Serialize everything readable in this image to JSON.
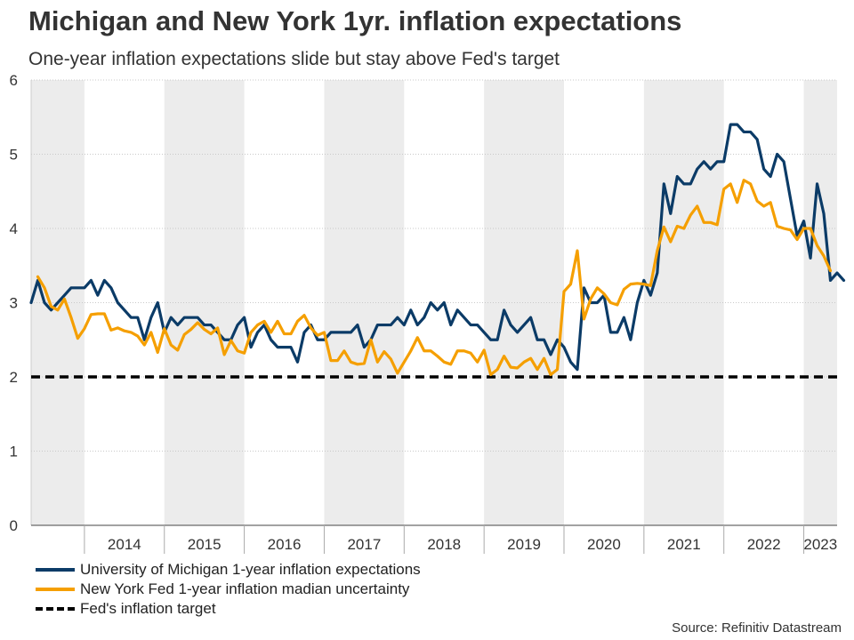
{
  "title": "Michigan and New York 1yr. inflation expectations",
  "subtitle": "One-year inflation expectations slide but stay above Fed's target",
  "source": "Source: Refinitiv Datastream",
  "chart_data": {
    "type": "line",
    "x_axis": {
      "type": "time",
      "range": [
        "2013-05",
        "2023-06"
      ],
      "tick_labels": [
        "2014",
        "2015",
        "2016",
        "2017",
        "2018",
        "2019",
        "2020",
        "2021",
        "2022",
        "2023"
      ]
    },
    "y_axis": {
      "range": [
        0,
        6
      ],
      "ticks": [
        0,
        1,
        2,
        3,
        4,
        5,
        6
      ]
    },
    "grid": "horizontal dotted",
    "background_bands": "alternating shaded years",
    "legend_position": "bottom-left",
    "series": [
      {
        "name": "University of Michigan 1-year inflation expectations",
        "color": "#0b3b67",
        "start": "2013-05",
        "frequency": "monthly",
        "values": [
          3.0,
          3.3,
          3.0,
          2.9,
          3.0,
          3.1,
          3.2,
          3.2,
          3.2,
          3.3,
          3.1,
          3.3,
          3.2,
          3.0,
          2.9,
          2.8,
          2.8,
          2.5,
          2.8,
          3.0,
          2.6,
          2.8,
          2.7,
          2.8,
          2.8,
          2.8,
          2.7,
          2.7,
          2.6,
          2.5,
          2.5,
          2.7,
          2.8,
          2.4,
          2.6,
          2.7,
          2.5,
          2.4,
          2.4,
          2.4,
          2.2,
          2.6,
          2.7,
          2.5,
          2.5,
          2.6,
          2.6,
          2.6,
          2.6,
          2.7,
          2.4,
          2.5,
          2.7,
          2.7,
          2.7,
          2.8,
          2.7,
          2.9,
          2.7,
          2.8,
          3.0,
          2.9,
          3.0,
          2.7,
          2.9,
          2.8,
          2.7,
          2.7,
          2.6,
          2.5,
          2.5,
          2.9,
          2.7,
          2.6,
          2.7,
          2.8,
          2.5,
          2.5,
          2.3,
          2.5,
          2.4,
          2.2,
          2.1,
          3.2,
          3.0,
          3.0,
          3.1,
          2.6,
          2.6,
          2.8,
          2.5,
          3.0,
          3.3,
          3.1,
          3.4,
          4.6,
          4.2,
          4.7,
          4.6,
          4.6,
          4.8,
          4.9,
          4.8,
          4.9,
          4.9,
          5.4,
          5.4,
          5.3,
          5.3,
          5.2,
          4.8,
          4.7,
          5.0,
          4.9,
          4.4,
          3.9,
          4.1,
          3.6,
          4.6,
          4.2,
          3.3,
          3.4,
          3.3
        ]
      },
      {
        "name": "New York Fed 1-year inflation madian uncertainty",
        "color": "#f59f00",
        "start": "2013-06",
        "frequency": "monthly",
        "values": [
          3.35,
          3.2,
          2.95,
          2.9,
          3.05,
          2.8,
          2.52,
          2.65,
          2.84,
          2.85,
          2.85,
          2.63,
          2.66,
          2.62,
          2.6,
          2.55,
          2.43,
          2.6,
          2.33,
          2.65,
          2.43,
          2.36,
          2.57,
          2.64,
          2.73,
          2.64,
          2.58,
          2.66,
          2.3,
          2.49,
          2.35,
          2.32,
          2.6,
          2.7,
          2.75,
          2.6,
          2.75,
          2.58,
          2.58,
          2.75,
          2.83,
          2.66,
          2.56,
          2.6,
          2.22,
          2.22,
          2.35,
          2.2,
          2.17,
          2.18,
          2.5,
          2.2,
          2.34,
          2.24,
          2.05,
          2.2,
          2.35,
          2.53,
          2.35,
          2.35,
          2.28,
          2.2,
          2.17,
          2.35,
          2.35,
          2.32,
          2.2,
          2.36,
          2.03,
          2.1,
          2.28,
          2.13,
          2.12,
          2.2,
          2.25,
          2.1,
          2.25,
          2.03,
          2.1,
          3.15,
          3.25,
          3.7,
          2.78,
          3.05,
          3.2,
          3.12,
          3.0,
          2.97,
          3.18,
          3.25,
          3.26,
          3.25,
          3.23,
          3.7,
          4.02,
          3.82,
          4.03,
          4.0,
          4.18,
          4.3,
          4.08,
          4.08,
          4.05,
          4.53,
          4.6,
          4.35,
          4.65,
          4.6,
          4.37,
          4.3,
          4.35,
          4.03,
          4.0,
          3.98,
          3.85,
          4.0,
          4.0,
          3.77,
          3.63,
          3.43
        ]
      },
      {
        "name": "Fed's inflation target",
        "color": "#000000",
        "style": "dashed",
        "value": 2
      }
    ]
  }
}
